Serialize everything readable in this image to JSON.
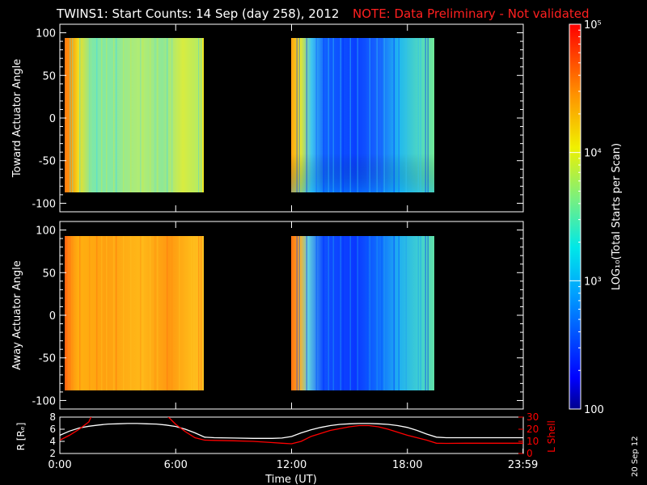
{
  "header": {
    "title": "TWINS1: Start Counts: 14 Sep (day 258), 2012",
    "note": "NOTE: Data Preliminary - Not validated",
    "note_color": "#ff2020"
  },
  "stamp": "20 Sep 12",
  "chart_data": [
    {
      "type": "heatmap",
      "panel": "toward",
      "ylabel": "Toward Actuator Angle",
      "ylim": [
        -110,
        110
      ],
      "yticks": [
        100,
        50,
        0,
        -50,
        -100
      ],
      "data_ylim": [
        -90,
        90
      ],
      "segments": [
        [
          0.25,
          7.3
        ],
        [
          12.0,
          19.4
        ]
      ],
      "colorscale": "rainbow, log scale"
    },
    {
      "type": "heatmap",
      "panel": "away",
      "ylabel": "Away Actuator Angle",
      "ylim": [
        -110,
        110
      ],
      "yticks": [
        100,
        50,
        0,
        -50,
        -100
      ],
      "data_ylim": [
        -90,
        90
      ],
      "segments": [
        [
          0.25,
          7.3
        ],
        [
          12.0,
          19.4
        ]
      ],
      "colorscale": "rainbow, log scale"
    },
    {
      "type": "line",
      "panel": "orbit",
      "xlabel": "Time (UT)",
      "xlim": [
        0,
        24
      ],
      "xticks": [
        0,
        6,
        12,
        18,
        23.983
      ],
      "xtick_labels": [
        "0:00",
        "6:00",
        "12:00",
        "18:00",
        "23:59"
      ],
      "left_axis": {
        "label": "R [Rₑ]",
        "ylim": [
          2,
          8
        ],
        "ticks": [
          2,
          4,
          6,
          8
        ],
        "color": "#ffffff"
      },
      "right_axis": {
        "label": "L Shell",
        "ylim": [
          0,
          30
        ],
        "ticks": [
          0,
          10,
          20,
          30
        ],
        "color": "#ff0000"
      },
      "series": [
        {
          "axis": "left",
          "color": "#ffffff",
          "x": [
            0,
            0.5,
            1,
            1.5,
            2,
            2.5,
            3,
            3.5,
            4,
            4.5,
            5,
            5.5,
            6,
            6.5,
            7,
            7.5,
            8,
            9,
            10,
            11,
            11.5,
            12,
            12.5,
            13,
            13.5,
            14,
            14.5,
            15,
            15.5,
            16,
            16.5,
            17,
            17.5,
            18,
            18.5,
            19,
            19.5,
            20,
            21,
            22,
            23,
            24
          ],
          "y": [
            5.0,
            5.7,
            6.2,
            6.5,
            6.7,
            6.85,
            6.9,
            6.95,
            6.95,
            6.9,
            6.85,
            6.7,
            6.45,
            6.0,
            5.4,
            4.7,
            4.6,
            4.55,
            4.5,
            4.5,
            4.55,
            4.8,
            5.4,
            5.9,
            6.3,
            6.6,
            6.8,
            6.9,
            6.95,
            6.95,
            6.9,
            6.8,
            6.6,
            6.3,
            5.8,
            5.2,
            4.7,
            4.6,
            4.6,
            4.6,
            4.6,
            4.6
          ]
        },
        {
          "axis": "right",
          "color": "#ff0000",
          "x": [
            0,
            0.5,
            1,
            1.5,
            1.7,
            5.2,
            5.5,
            6,
            6.5,
            7,
            7.5,
            8,
            9,
            10,
            11,
            11.5,
            12,
            12.5,
            13,
            14,
            15,
            15.5,
            16,
            16.5,
            17,
            18,
            19,
            19.5,
            20,
            21,
            22,
            23,
            24
          ],
          "y": [
            11,
            15,
            20,
            26,
            33,
            33,
            32,
            24,
            18,
            13,
            11,
            10.8,
            10.5,
            10,
            9,
            8.5,
            8,
            10,
            14,
            19,
            22,
            23,
            23,
            22,
            20,
            15,
            11,
            8.5,
            8.3,
            8.5,
            8.5,
            8.5,
            8.5
          ]
        }
      ]
    },
    {
      "type": "colorbar",
      "label": "LOG₁₀(Total Starts per Scan)",
      "scale": "log",
      "range": [
        100,
        100000
      ],
      "ticks": [
        100,
        1000,
        10000,
        100000
      ],
      "tick_labels": [
        "100",
        "10³",
        "10⁴",
        "10⁵"
      ]
    }
  ]
}
